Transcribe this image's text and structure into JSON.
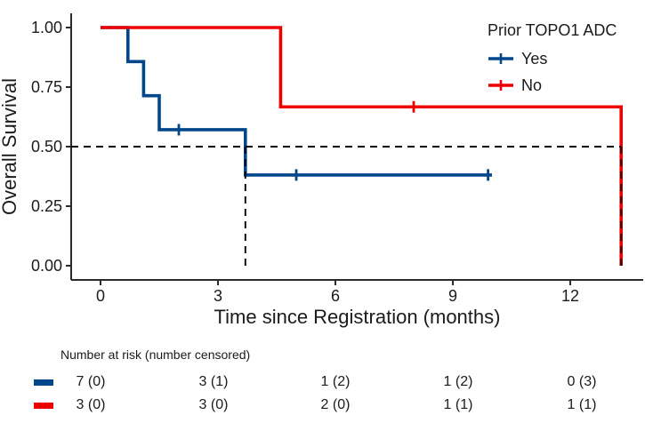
{
  "chart_data": {
    "type": "line",
    "subtype": "kaplan_meier_step_curve",
    "title": "",
    "xlabel": "Time since Registration (months)",
    "ylabel": "Overall Survival",
    "xlim": [
      0,
      13.6
    ],
    "ylim": [
      0,
      1
    ],
    "grid": false,
    "x_ticks": [
      "0",
      "3",
      "6",
      "9",
      "12"
    ],
    "x_tick_values": [
      0,
      3,
      6,
      9,
      12
    ],
    "y_ticks": [
      "0.00",
      "0.25",
      "0.50",
      "0.75",
      "1.00"
    ],
    "y_tick_values": [
      0,
      0.25,
      0.5,
      0.75,
      1
    ],
    "legend": {
      "title": "Prior TOPO1 ADC",
      "position": "top-right"
    },
    "series": [
      {
        "name": "Yes",
        "color": "#00468B",
        "steps": [
          [
            0,
            1.0
          ],
          [
            0.7,
            0.857
          ],
          [
            1.1,
            0.714
          ],
          [
            1.5,
            0.571
          ],
          [
            3.7,
            0.381
          ],
          [
            10.0,
            0.381
          ]
        ],
        "censors": [
          [
            2.0,
            0.571
          ],
          [
            5.0,
            0.381
          ],
          [
            9.9,
            0.381
          ]
        ]
      },
      {
        "name": "No",
        "color": "#ED0000",
        "steps": [
          [
            0,
            1.0
          ],
          [
            4.6,
            0.667
          ],
          [
            13.3,
            0.0
          ]
        ],
        "censors": [
          [
            8.0,
            0.667
          ]
        ]
      }
    ],
    "median_lines": {
      "style": "dashed",
      "color": "#000000",
      "y": 0.5,
      "x_values": [
        3.7,
        13.3
      ]
    }
  },
  "risk_table": {
    "title": "Number at risk (number censored)",
    "time_points": [
      0,
      3,
      6,
      9,
      12
    ],
    "rows": [
      {
        "group": "Yes",
        "color": "#00468B",
        "values": [
          "7 (0)",
          "3 (1)",
          "1 (2)",
          "1 (2)",
          "0 (3)"
        ]
      },
      {
        "group": "No",
        "color": "#ED0000",
        "values": [
          "3 (0)",
          "3 (0)",
          "2 (0)",
          "1 (1)",
          "1 (1)"
        ]
      }
    ]
  }
}
